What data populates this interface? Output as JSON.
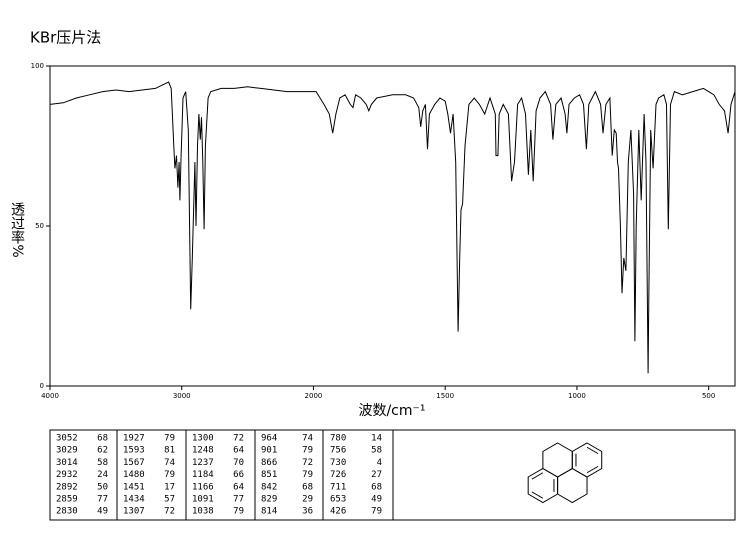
{
  "chart_data": {
    "type": "line",
    "title": "KBr压片法",
    "x_label": "波数/cm⁻¹",
    "y_label": "透过率%",
    "xlim": [
      4000,
      400
    ],
    "x_scale_break": 2000,
    "xticks": [
      4000,
      3000,
      2000,
      1500,
      1000,
      500
    ],
    "ylim": [
      0,
      100
    ],
    "yticks": [
      0,
      50,
      100
    ],
    "color": "#000000",
    "x": [
      4000,
      3900,
      3800,
      3700,
      3600,
      3500,
      3400,
      3300,
      3200,
      3150,
      3100,
      3080,
      3060,
      3052,
      3040,
      3029,
      3020,
      3014,
      3005,
      2990,
      2970,
      2950,
      2932,
      2920,
      2900,
      2892,
      2880,
      2870,
      2859,
      2850,
      2840,
      2830,
      2820,
      2800,
      2780,
      2700,
      2600,
      2500,
      2400,
      2300,
      2200,
      2100,
      2000,
      1990,
      1960,
      1940,
      1927,
      1915,
      1900,
      1880,
      1860,
      1850,
      1840,
      1820,
      1800,
      1790,
      1780,
      1760,
      1700,
      1650,
      1620,
      1600,
      1593,
      1585,
      1575,
      1567,
      1560,
      1540,
      1520,
      1500,
      1490,
      1480,
      1470,
      1460,
      1451,
      1445,
      1440,
      1434,
      1425,
      1410,
      1390,
      1370,
      1350,
      1330,
      1310,
      1307,
      1300,
      1295,
      1280,
      1260,
      1248,
      1237,
      1225,
      1210,
      1195,
      1184,
      1175,
      1166,
      1155,
      1140,
      1120,
      1100,
      1091,
      1080,
      1060,
      1045,
      1038,
      1030,
      1010,
      990,
      975,
      964,
      955,
      930,
      910,
      901,
      890,
      875,
      866,
      858,
      851,
      846,
      842,
      835,
      829,
      822,
      814,
      805,
      795,
      785,
      780,
      775,
      765,
      756,
      745,
      738,
      730,
      727,
      720,
      711,
      700,
      690,
      670,
      660,
      653,
      645,
      630,
      600,
      560,
      520,
      500,
      480,
      460,
      440,
      426,
      415,
      400
    ],
    "values": [
      88,
      88.5,
      90,
      91,
      92,
      92.5,
      92,
      92.5,
      93,
      94,
      95,
      93,
      75,
      68,
      72,
      62,
      70,
      58,
      72,
      90,
      92,
      80,
      24,
      40,
      70,
      50,
      75,
      85,
      77,
      84,
      70,
      49,
      75,
      90,
      92,
      93,
      93,
      93.5,
      93,
      92.5,
      92,
      92,
      92,
      92,
      88,
      85,
      79,
      85,
      90,
      91,
      88,
      87,
      91,
      90,
      88,
      86,
      88,
      90,
      91,
      91,
      90,
      87,
      81,
      86,
      88,
      74,
      85,
      88,
      90,
      89,
      85,
      79,
      85,
      70,
      17,
      40,
      55,
      57,
      75,
      88,
      90,
      88,
      85,
      90,
      85,
      72,
      72,
      85,
      88,
      85,
      64,
      70,
      88,
      90,
      85,
      66,
      80,
      64,
      86,
      90,
      92,
      88,
      77,
      88,
      90,
      85,
      79,
      88,
      90,
      91,
      88,
      74,
      88,
      92,
      88,
      79,
      88,
      90,
      72,
      80,
      79,
      70,
      68,
      50,
      29,
      40,
      36,
      70,
      80,
      60,
      14,
      50,
      80,
      58,
      85,
      70,
      4,
      27,
      80,
      68,
      88,
      90,
      91,
      88,
      49,
      88,
      92,
      91,
      92,
      93,
      92,
      91,
      88,
      86,
      79,
      88,
      92
    ]
  },
  "peak_table": [
    [
      [
        3052,
        68
      ],
      [
        3029,
        62
      ],
      [
        3014,
        58
      ],
      [
        2932,
        24
      ],
      [
        2892,
        50
      ],
      [
        2859,
        77
      ],
      [
        2830,
        49
      ]
    ],
    [
      [
        1927,
        79
      ],
      [
        1593,
        81
      ],
      [
        1567,
        74
      ],
      [
        1480,
        79
      ],
      [
        1451,
        17
      ],
      [
        1434,
        57
      ],
      [
        1307,
        72
      ]
    ],
    [
      [
        1300,
        72
      ],
      [
        1248,
        64
      ],
      [
        1237,
        70
      ],
      [
        1184,
        66
      ],
      [
        1166,
        64
      ],
      [
        1091,
        77
      ],
      [
        1038,
        79
      ]
    ],
    [
      [
        964,
        74
      ],
      [
        901,
        79
      ],
      [
        866,
        72
      ],
      [
        851,
        79
      ],
      [
        842,
        68
      ],
      [
        829,
        29
      ],
      [
        814,
        36
      ]
    ],
    [
      [
        780,
        14
      ],
      [
        756,
        58
      ],
      [
        730,
        4
      ],
      [
        726,
        27
      ],
      [
        711,
        68
      ],
      [
        653,
        49
      ],
      [
        426,
        79
      ]
    ]
  ]
}
